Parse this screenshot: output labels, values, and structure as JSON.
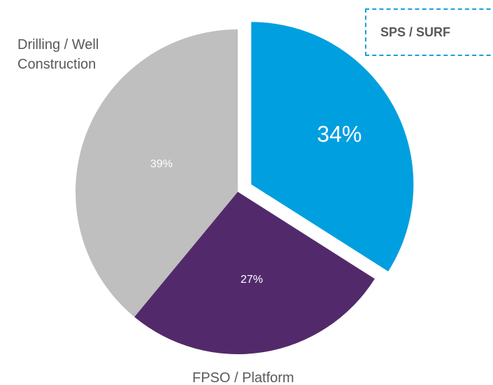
{
  "chart_data": {
    "type": "pie",
    "categories": [
      "SPS / SURF",
      "FPSO / Platform",
      "Drilling / Well Construction"
    ],
    "values": [
      34,
      27,
      39
    ],
    "value_labels": [
      "34%",
      "27%",
      "39%"
    ],
    "colors": [
      "#009fe0",
      "#522a6b",
      "#bfbfbf"
    ],
    "exploded": [
      true,
      false,
      false
    ]
  }
}
